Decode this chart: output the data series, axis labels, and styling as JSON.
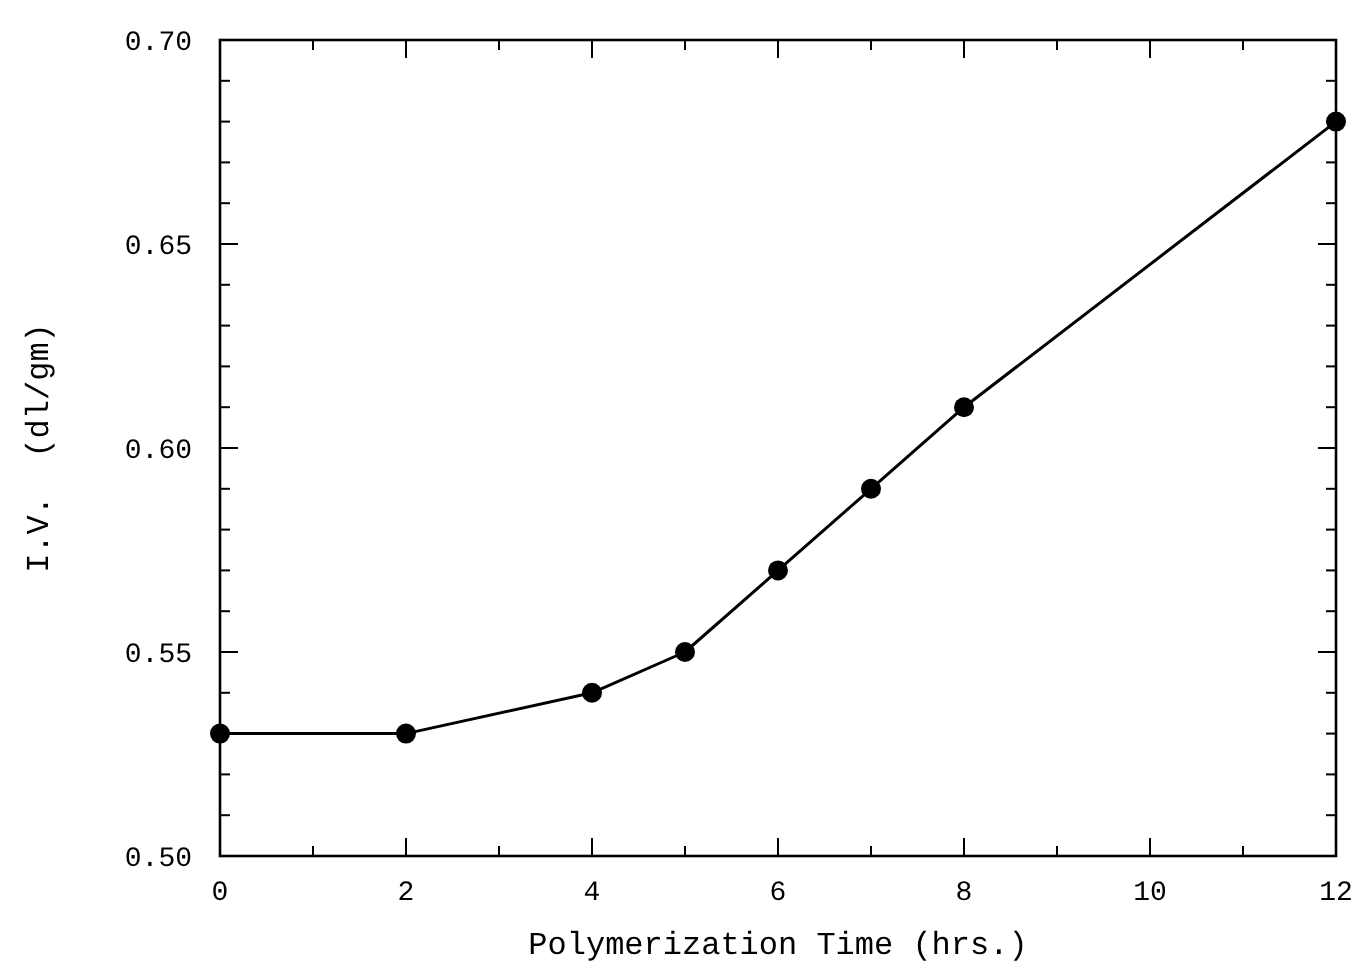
{
  "chart_data": {
    "type": "line",
    "xlabel": "Polymerization Time (hrs.)",
    "ylabel": "I.V.  (dl/gm)",
    "x": [
      0,
      2,
      4,
      5,
      6,
      7,
      8,
      12
    ],
    "series": [
      {
        "color": "#000000",
        "values": [
          0.53,
          0.53,
          0.54,
          0.55,
          0.57,
          0.59,
          0.61,
          0.68
        ]
      }
    ],
    "xlim": [
      0,
      12
    ],
    "ylim": [
      0.5,
      0.7
    ],
    "xticks": [
      0,
      {
        "value": 1,
        "label": null
      },
      2,
      {
        "value": 3,
        "label": null
      },
      4,
      {
        "value": 5,
        "label": null
      },
      6,
      {
        "value": 7,
        "label": null
      },
      8,
      {
        "value": 9,
        "label": null
      },
      10,
      {
        "value": 11,
        "label": null
      },
      12
    ],
    "yticks": [
      {
        "value": 0.5,
        "label": "0.50"
      },
      {
        "value": 0.51,
        "label": null
      },
      {
        "value": 0.52,
        "label": null
      },
      {
        "value": 0.53,
        "label": null
      },
      {
        "value": 0.54,
        "label": null
      },
      0.55,
      {
        "value": 0.56,
        "label": null
      },
      {
        "value": 0.57,
        "label": null
      },
      {
        "value": 0.58,
        "label": null
      },
      {
        "value": 0.59,
        "label": null
      },
      {
        "value": 0.6,
        "label": "0.60"
      },
      {
        "value": 0.61,
        "label": null
      },
      {
        "value": 0.62,
        "label": null
      },
      {
        "value": 0.63,
        "label": null
      },
      {
        "value": 0.64,
        "label": null
      },
      0.65,
      {
        "value": 0.66,
        "label": null
      },
      {
        "value": 0.67,
        "label": null
      },
      {
        "value": 0.68,
        "label": null
      },
      {
        "value": 0.69,
        "label": null
      },
      {
        "value": 0.7,
        "label": "0.70"
      }
    ],
    "marker": "circle",
    "line_style": "solid",
    "grid": false
  }
}
